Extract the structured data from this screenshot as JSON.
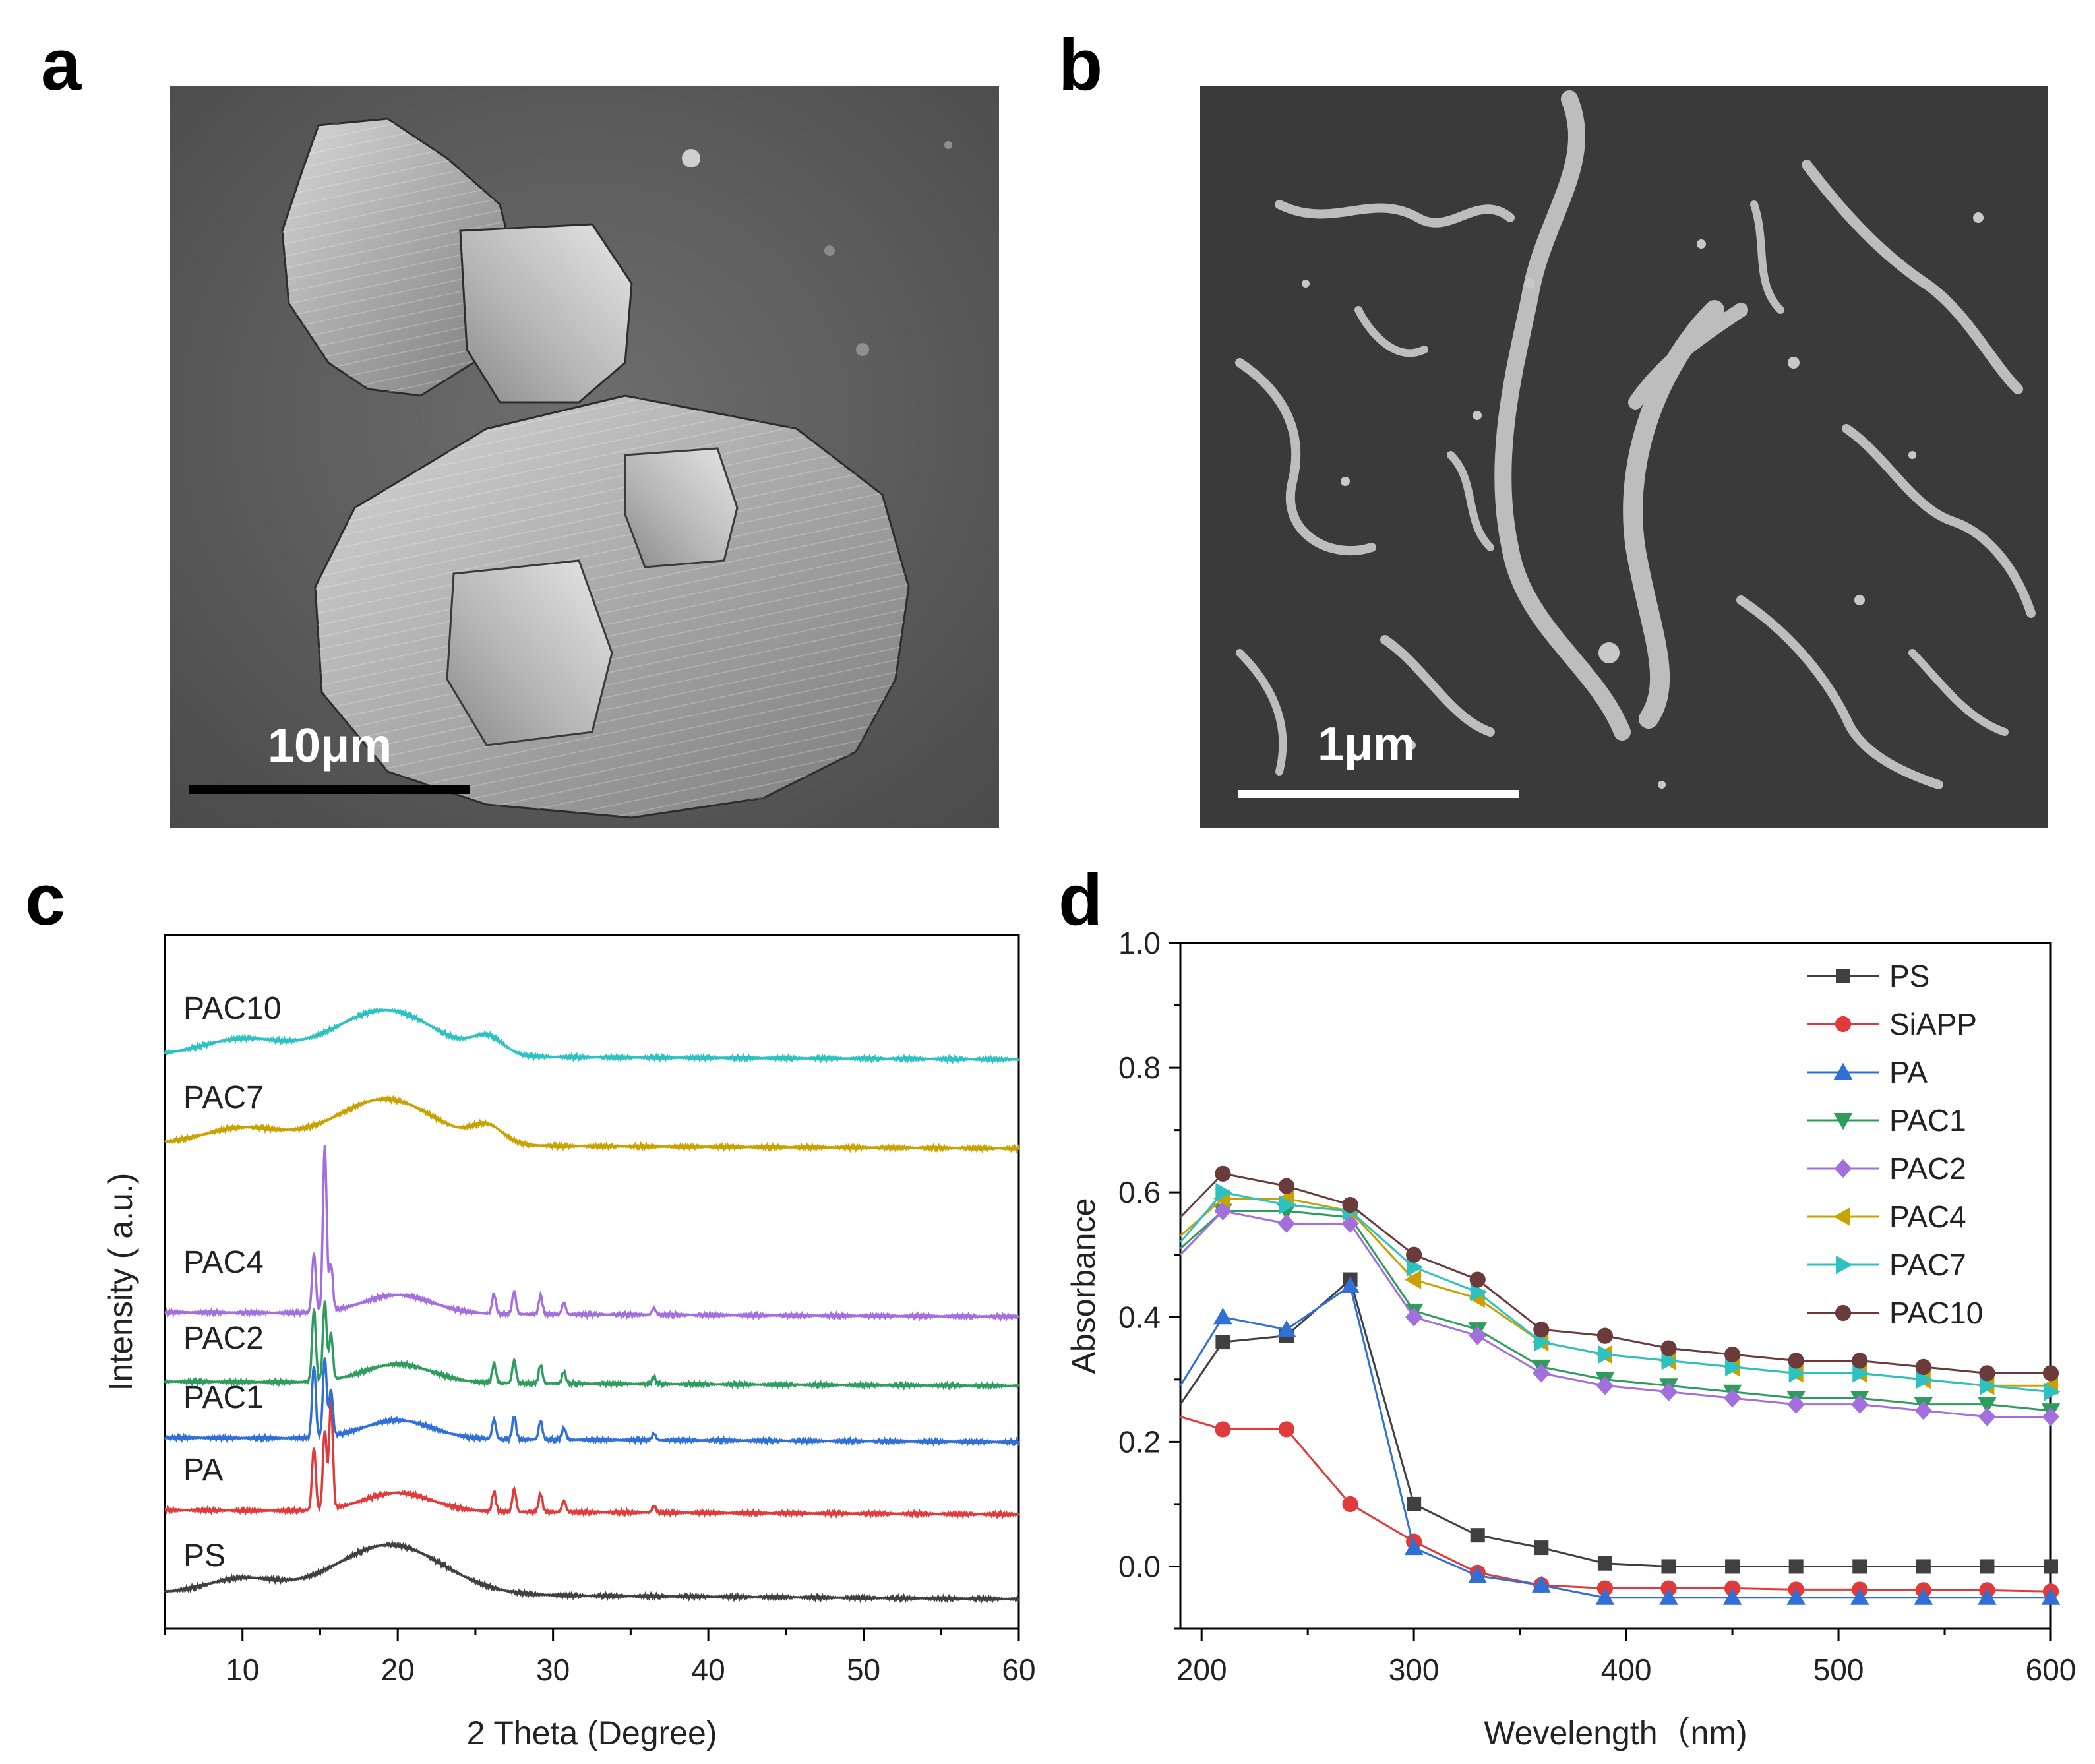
{
  "panels": {
    "a": {
      "letter": "a",
      "scale_label": "10μm"
    },
    "b": {
      "letter": "b",
      "scale_label": "1μm"
    },
    "c": {
      "letter": "c"
    },
    "d": {
      "letter": "d"
    }
  },
  "chart_data": [
    {
      "type": "line",
      "panel": "c",
      "title": "",
      "xlabel": "2 Theta (Degree)",
      "ylabel": "Intensity ( a.u.)",
      "xlim": [
        5,
        60
      ],
      "xticks": [
        10,
        20,
        30,
        40,
        50,
        60
      ],
      "y_ticks_shown": false,
      "grid": false,
      "legend": "inline labels on left of each trace",
      "series": [
        {
          "name": "PS",
          "color": "#404040"
        },
        {
          "name": "PA",
          "color": "#e03a3a"
        },
        {
          "name": "PAC1",
          "color": "#2f6fd6"
        },
        {
          "name": "PAC2",
          "color": "#2e9c5e"
        },
        {
          "name": "PAC4",
          "color": "#a36fdc"
        },
        {
          "name": "PAC7",
          "color": "#c7a200"
        },
        {
          "name": "PAC10",
          "color": "#2cc2c2"
        }
      ]
    },
    {
      "type": "line",
      "panel": "d",
      "title": "",
      "xlabel": "Wevelength（nm)",
      "ylabel": "Absorbance",
      "xlim": [
        190,
        600
      ],
      "ylim": [
        -0.1,
        1.0
      ],
      "xticks": [
        200,
        300,
        400,
        500,
        600
      ],
      "yticks": [
        "0.0",
        "0.2",
        "0.4",
        "0.6",
        "0.8",
        "1.0"
      ],
      "grid": false,
      "legend": "top-right",
      "x": [
        190,
        210,
        240,
        270,
        300,
        330,
        360,
        390,
        420,
        450,
        480,
        510,
        540,
        570,
        600
      ],
      "series": [
        {
          "name": "PS",
          "color": "#404040",
          "marker": "square",
          "values": [
            0.26,
            0.36,
            0.37,
            0.46,
            0.1,
            0.05,
            0.03,
            0.005,
            0.0,
            0.0,
            0.0,
            0.0,
            0.0,
            0.0,
            0.0
          ]
        },
        {
          "name": "SiAPP",
          "color": "#e03a3a",
          "marker": "circle",
          "values": [
            0.24,
            0.22,
            0.22,
            0.1,
            0.04,
            -0.01,
            -0.03,
            -0.035,
            -0.035,
            -0.035,
            -0.037,
            -0.037,
            -0.038,
            -0.038,
            -0.04
          ]
        },
        {
          "name": "PA",
          "color": "#2f6fd6",
          "marker": "triangle-up",
          "values": [
            0.29,
            0.4,
            0.38,
            0.45,
            0.03,
            -0.015,
            -0.03,
            -0.05,
            -0.05,
            -0.05,
            -0.05,
            -0.05,
            -0.05,
            -0.05,
            -0.05
          ]
        },
        {
          "name": "PAC1",
          "color": "#2e9c5e",
          "marker": "triangle-down",
          "values": [
            0.51,
            0.57,
            0.57,
            0.56,
            0.41,
            0.38,
            0.32,
            0.3,
            0.29,
            0.28,
            0.27,
            0.27,
            0.26,
            0.26,
            0.25
          ]
        },
        {
          "name": "PAC2",
          "color": "#a36fdc",
          "marker": "diamond",
          "values": [
            0.5,
            0.57,
            0.55,
            0.55,
            0.4,
            0.37,
            0.31,
            0.29,
            0.28,
            0.27,
            0.26,
            0.26,
            0.25,
            0.24,
            0.24
          ]
        },
        {
          "name": "PAC4",
          "color": "#c7a200",
          "marker": "triangle-left",
          "values": [
            0.53,
            0.59,
            0.59,
            0.57,
            0.46,
            0.43,
            0.36,
            0.34,
            0.33,
            0.32,
            0.31,
            0.31,
            0.3,
            0.29,
            0.29
          ]
        },
        {
          "name": "PAC7",
          "color": "#2cc2c2",
          "marker": "triangle-right",
          "values": [
            0.52,
            0.6,
            0.58,
            0.57,
            0.48,
            0.44,
            0.36,
            0.34,
            0.33,
            0.32,
            0.31,
            0.31,
            0.3,
            0.29,
            0.28
          ]
        },
        {
          "name": "PAC10",
          "color": "#6b3a3a",
          "marker": "circle",
          "values": [
            0.56,
            0.63,
            0.61,
            0.58,
            0.5,
            0.46,
            0.38,
            0.37,
            0.35,
            0.34,
            0.33,
            0.33,
            0.32,
            0.31,
            0.31
          ]
        }
      ]
    }
  ]
}
